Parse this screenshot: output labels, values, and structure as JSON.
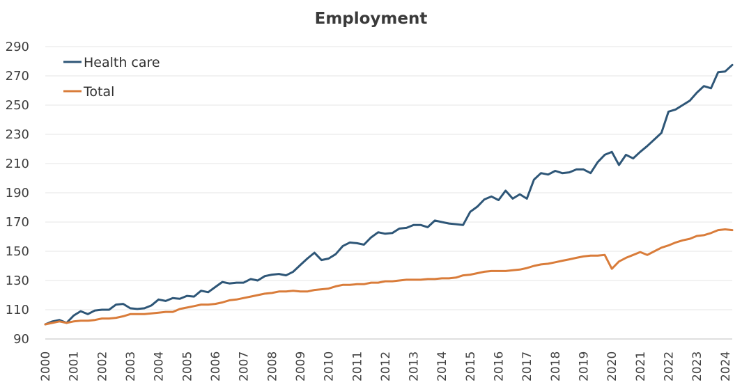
{
  "chart_data": {
    "type": "line",
    "title": "Employment",
    "xlabel": "",
    "ylabel": "",
    "ylim": [
      90,
      290
    ],
    "xlim": [
      2000,
      2024.25
    ],
    "yticks": [
      "90",
      "110",
      "130",
      "150",
      "170",
      "190",
      "210",
      "230",
      "250",
      "270",
      "290"
    ],
    "xticks": [
      "2000",
      "2001",
      "2002",
      "2003",
      "2004",
      "2005",
      "2006",
      "2007",
      "2008",
      "2009",
      "2010",
      "2011",
      "2012",
      "2013",
      "2014",
      "2015",
      "2016",
      "2017",
      "2018",
      "2019",
      "2020",
      "2021",
      "2022",
      "2023",
      "2024"
    ],
    "grid": "horizontal",
    "legend_position": "top-left",
    "x": [
      2000.0,
      2000.25,
      2000.5,
      2000.75,
      2001.0,
      2001.25,
      2001.5,
      2001.75,
      2002.0,
      2002.25,
      2002.5,
      2002.75,
      2003.0,
      2003.25,
      2003.5,
      2003.75,
      2004.0,
      2004.25,
      2004.5,
      2004.75,
      2005.0,
      2005.25,
      2005.5,
      2005.75,
      2006.0,
      2006.25,
      2006.5,
      2006.75,
      2007.0,
      2007.25,
      2007.5,
      2007.75,
      2008.0,
      2008.25,
      2008.5,
      2008.75,
      2009.0,
      2009.25,
      2009.5,
      2009.75,
      2010.0,
      2010.25,
      2010.5,
      2010.75,
      2011.0,
      2011.25,
      2011.5,
      2011.75,
      2012.0,
      2012.25,
      2012.5,
      2012.75,
      2013.0,
      2013.25,
      2013.5,
      2013.75,
      2014.0,
      2014.25,
      2014.5,
      2014.75,
      2015.0,
      2015.25,
      2015.5,
      2015.75,
      2016.0,
      2016.25,
      2016.5,
      2016.75,
      2017.0,
      2017.25,
      2017.5,
      2017.75,
      2018.0,
      2018.25,
      2018.5,
      2018.75,
      2019.0,
      2019.25,
      2019.5,
      2019.75,
      2020.0,
      2020.25,
      2020.5,
      2020.75,
      2021.0,
      2021.25,
      2021.5,
      2021.75,
      2022.0,
      2022.25,
      2022.5,
      2022.75,
      2023.0,
      2023.25,
      2023.5,
      2023.75,
      2024.0,
      2024.25
    ],
    "series": [
      {
        "name": "Health care",
        "color": "#2e5677",
        "values": [
          100.0,
          102.0,
          103.0,
          101.0,
          106.0,
          109.0,
          107.0,
          109.5,
          110.0,
          110.0,
          113.5,
          114.0,
          111.0,
          110.5,
          111.0,
          113.0,
          117.0,
          116.0,
          118.0,
          117.5,
          119.5,
          119.0,
          123.0,
          122.0,
          125.5,
          129.0,
          128.0,
          128.5,
          128.5,
          131.0,
          130.0,
          133.0,
          134.0,
          134.5,
          133.5,
          136.0,
          140.5,
          145.0,
          149.0,
          144.0,
          145.0,
          148.0,
          153.5,
          156.0,
          155.5,
          154.5,
          159.5,
          163.0,
          162.0,
          162.5,
          165.5,
          166.0,
          168.0,
          168.0,
          166.5,
          171.0,
          170.0,
          169.0,
          168.5,
          168.0,
          177.0,
          180.5,
          185.5,
          187.5,
          185.0,
          191.5,
          186.0,
          189.0,
          186.0,
          199.0,
          203.5,
          202.5,
          205.0,
          203.5,
          204.0,
          206.0,
          206.0,
          203.5,
          211.0,
          216.0,
          218.0,
          209.0,
          216.0,
          213.5,
          218.0,
          222.0,
          226.5,
          231.0,
          245.5,
          247.0,
          250.0,
          253.0,
          258.5,
          263.0,
          261.5,
          272.5,
          273.0,
          277.5
        ]
      },
      {
        "name": "Total",
        "color": "#d97c3a",
        "values": [
          100.0,
          101.0,
          102.0,
          101.0,
          102.0,
          102.5,
          102.5,
          103.0,
          104.0,
          104.0,
          104.5,
          105.5,
          107.0,
          107.0,
          107.0,
          107.5,
          108.0,
          108.5,
          108.5,
          110.5,
          111.5,
          112.5,
          113.5,
          113.5,
          114.0,
          115.0,
          116.5,
          117.0,
          118.0,
          119.0,
          120.0,
          121.0,
          121.5,
          122.5,
          122.5,
          123.0,
          122.5,
          122.5,
          123.5,
          124.0,
          124.5,
          126.0,
          127.0,
          127.0,
          127.5,
          127.5,
          128.5,
          128.5,
          129.5,
          129.5,
          130.0,
          130.5,
          130.5,
          130.5,
          131.0,
          131.0,
          131.5,
          131.5,
          132.0,
          133.5,
          134.0,
          135.0,
          136.0,
          136.5,
          136.5,
          136.5,
          137.0,
          137.5,
          138.5,
          140.0,
          141.0,
          141.5,
          142.5,
          143.5,
          144.5,
          145.5,
          146.5,
          147.0,
          147.0,
          147.5,
          138.0,
          143.0,
          145.5,
          147.5,
          149.5,
          147.5,
          150.0,
          152.5,
          154.0,
          156.0,
          157.5,
          158.5,
          160.5,
          161.0,
          162.5,
          164.5,
          165.0,
          164.5
        ]
      }
    ]
  }
}
